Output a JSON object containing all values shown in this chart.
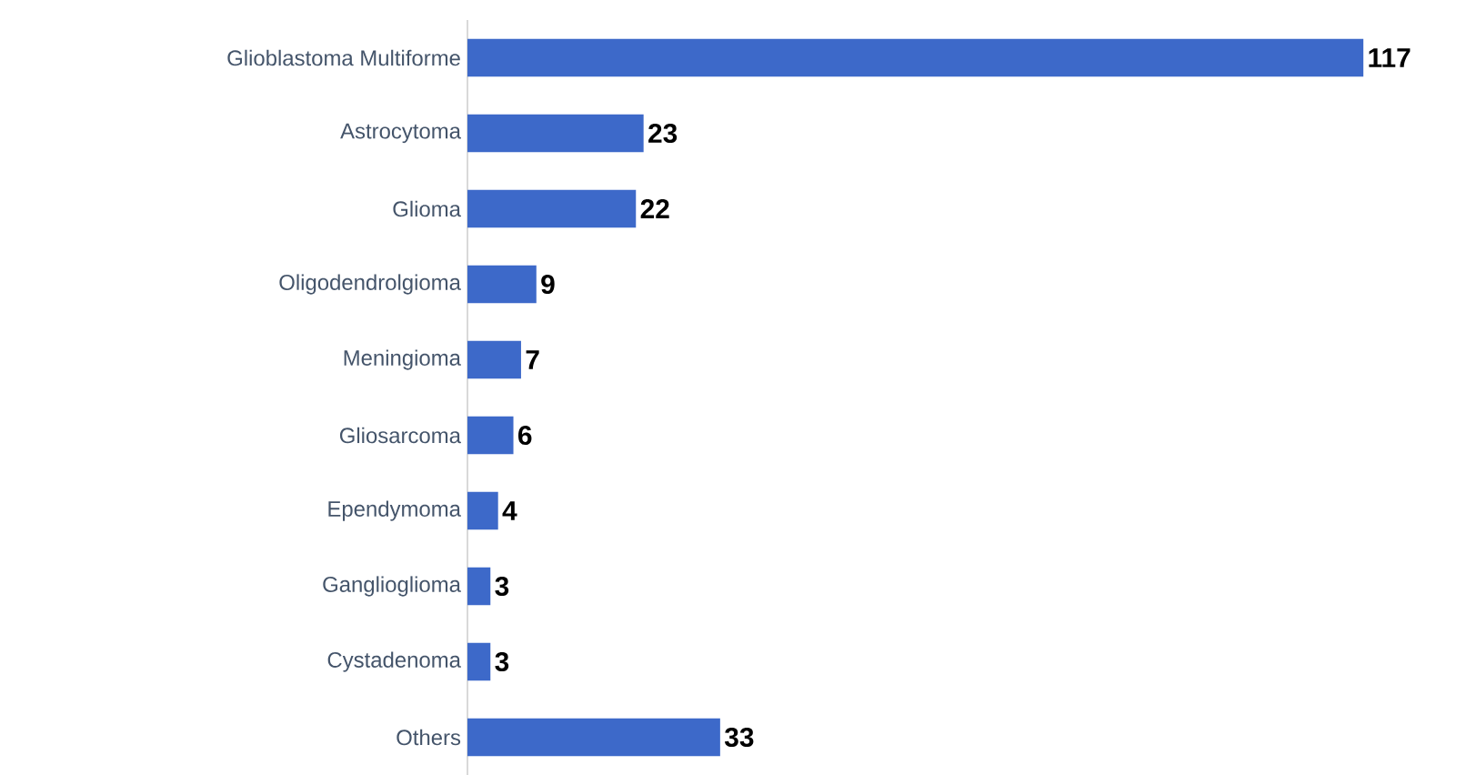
{
  "chart_data": {
    "type": "bar",
    "orientation": "horizontal",
    "categories": [
      "Glioblastoma Multiforme",
      "Astrocytoma",
      "Glioma",
      "Oligodendrolgioma",
      "Meningioma",
      "Gliosarcoma",
      "Ependymoma",
      "Ganglioglioma",
      "Cystadenoma",
      "Others"
    ],
    "values": [
      117,
      23,
      22,
      9,
      7,
      6,
      4,
      3,
      3,
      33
    ],
    "color": "#3d69c9",
    "data_labels": true
  }
}
